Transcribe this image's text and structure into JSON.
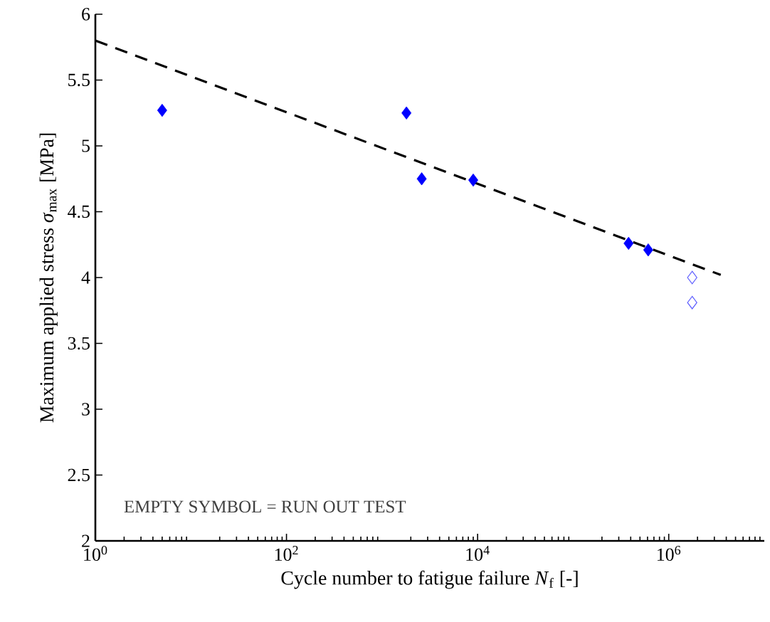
{
  "chart_data": {
    "type": "scatter",
    "xlabel": "Cycle number to fatigue failure *N*$_{f}$ [-]",
    "ylabel": "Maximum applied stress *σ*$_{max}$ [MPa]",
    "log": "x",
    "xlim": [
      1,
      10000000
    ],
    "ylim": [
      2,
      6
    ],
    "xticks": [
      {
        "value": 1,
        "label": "10$^{0}$"
      },
      {
        "value": 100,
        "label": "10$^{2}$"
      },
      {
        "value": 10000,
        "label": "10$^{4}$"
      },
      {
        "value": 1000000,
        "label": "10$^{6}$"
      }
    ],
    "yticks": [
      2,
      2.5,
      3,
      3.5,
      4,
      4.5,
      5,
      5.5,
      6
    ],
    "series": [
      {
        "color": "#0000ff",
        "marker": "diamond",
        "x": [
          5,
          1800,
          2600,
          9000,
          380000,
          610000
        ],
        "values": [
          5.27,
          5.25,
          4.75,
          4.74,
          4.26,
          4.21
        ]
      },
      {
        "color": "#5c5cff",
        "marker": "diamond",
        "x": [
          1760000,
          1760000
        ],
        "values": [
          4.0,
          3.81
        ]
      },
      {
        "type": "line",
        "color": "#000000",
        "marker": "none",
        "line_style": "dashed",
        "x": [
          1,
          3500000
        ],
        "values": [
          5.8,
          4.02
        ]
      }
    ],
    "annotations": [
      "EMPTY SYMBOL = RUN OUT TEST"
    ]
  }
}
